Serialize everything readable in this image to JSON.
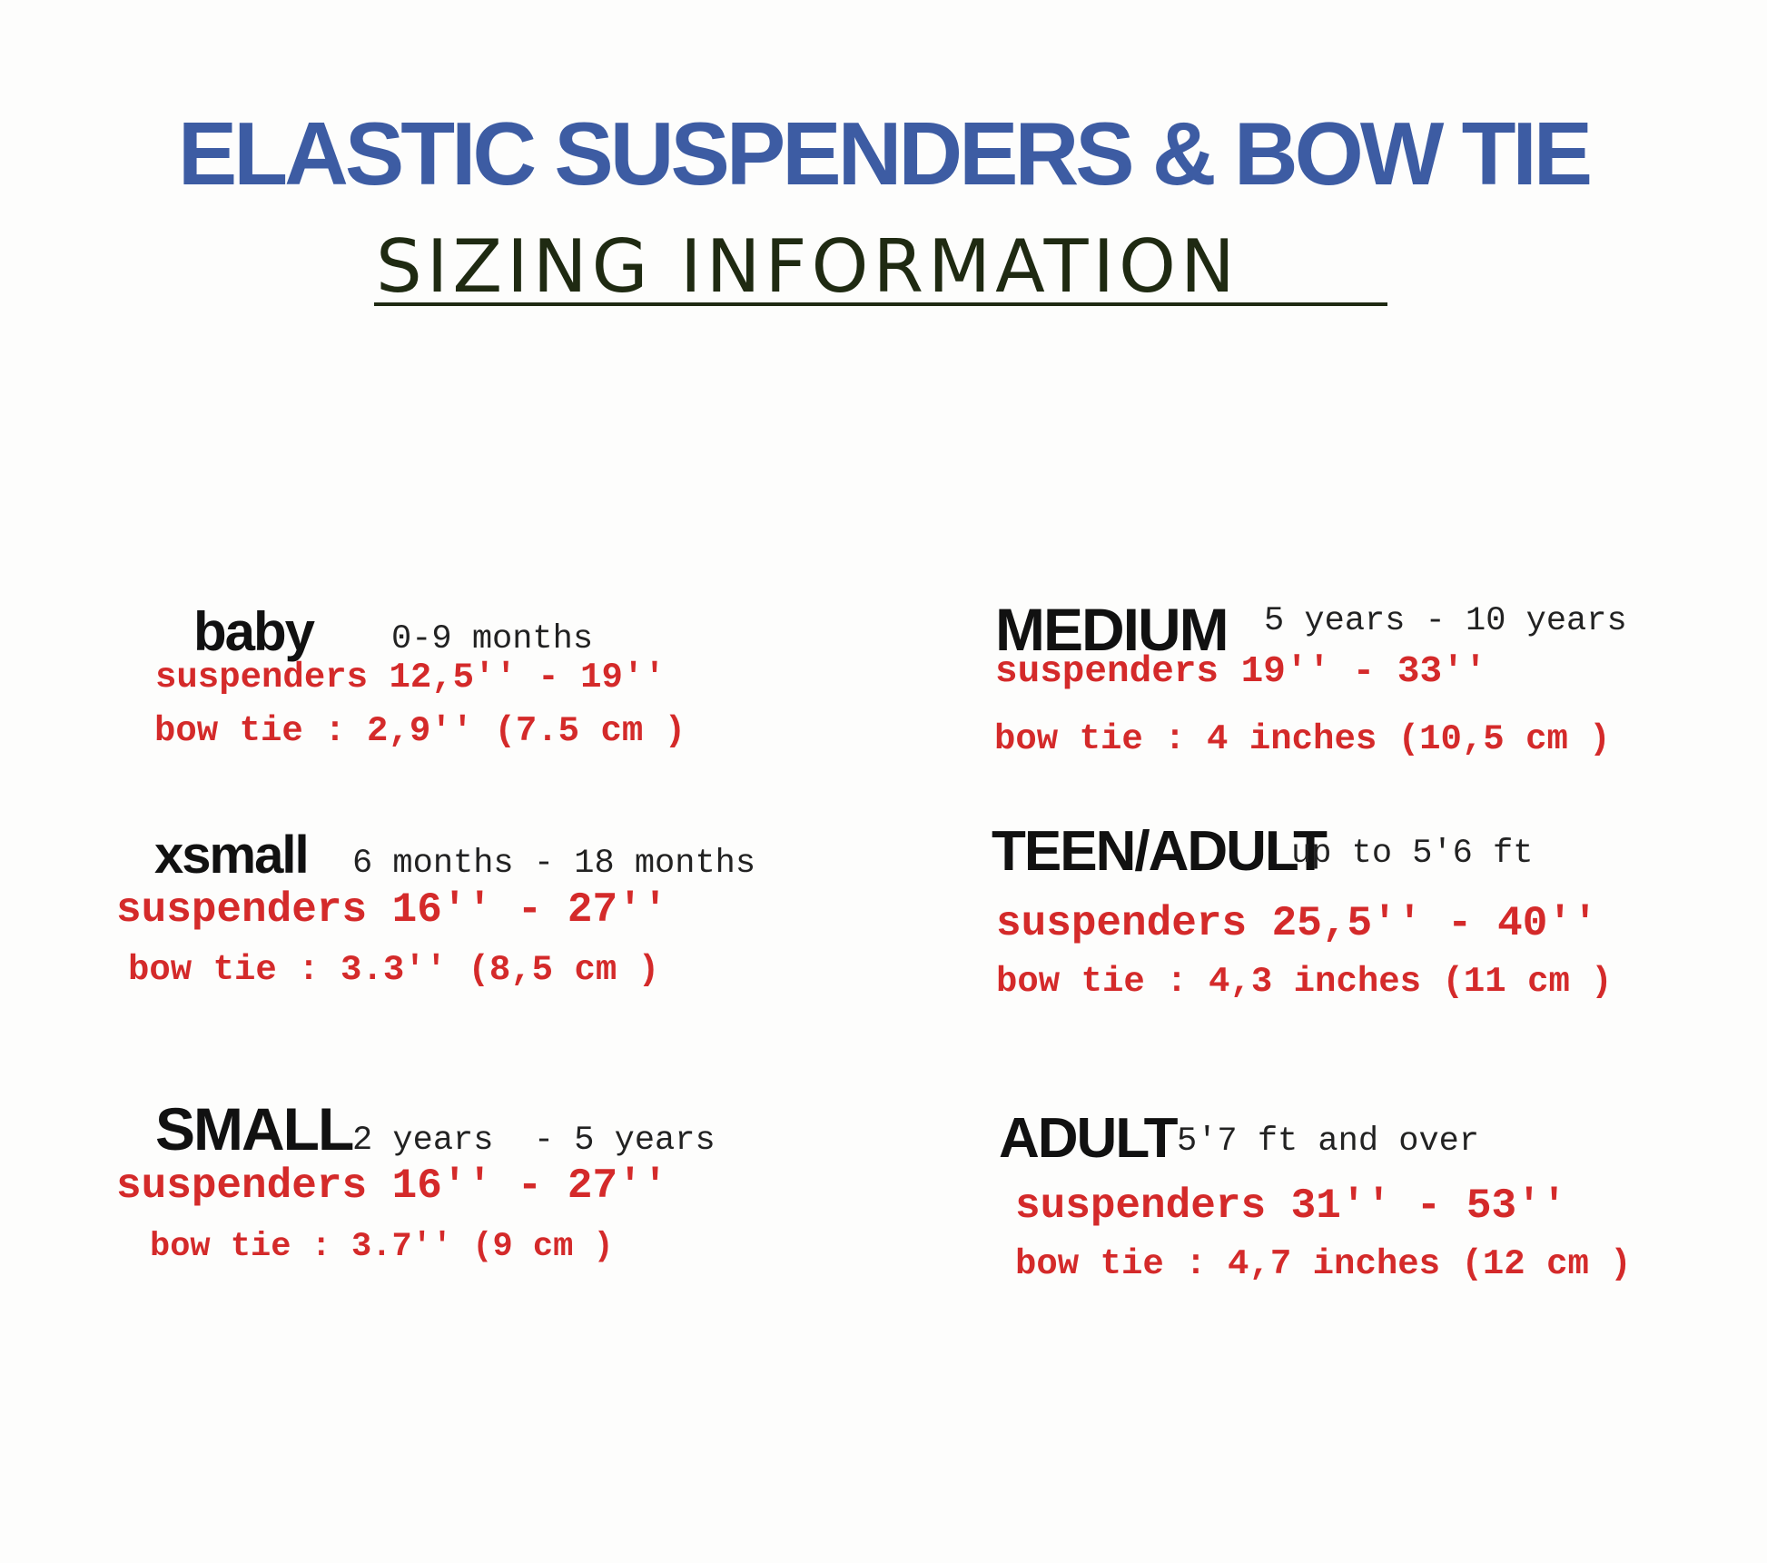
{
  "title": "ELASTIC SUSPENDERS & BOW TIE",
  "subtitle": "SIZING INFORMATION",
  "colors": {
    "title": "#3d5ca3",
    "subtitle": "#1f2a12",
    "measurements": "#d42a2a",
    "labels": "#111111"
  },
  "sizes": [
    {
      "label": "baby",
      "age": "0-9 months",
      "suspenders": "suspenders 12,5'' - 19''",
      "bow_tie": "bow tie : 2,9'' (7.5 cm )"
    },
    {
      "label": "xsmall",
      "age": "6 months - 18 months",
      "suspenders": "suspenders 16'' - 27''",
      "bow_tie": "bow tie : 3.3'' (8,5 cm )"
    },
    {
      "label": "SMALL",
      "age": "2 years  - 5 years",
      "suspenders": "suspenders 16'' - 27''",
      "bow_tie": "bow tie : 3.7'' (9 cm )"
    },
    {
      "label": "MEDIUM",
      "age": "5 years - 10 years",
      "suspenders": "suspenders 19'' - 33''",
      "bow_tie": "bow tie : 4 inches (10,5 cm )"
    },
    {
      "label": "TEEN/ADULT",
      "age": "up to 5'6 ft",
      "suspenders": "suspenders 25,5'' - 40''",
      "bow_tie": "bow tie : 4,3 inches (11 cm )"
    },
    {
      "label": "ADULT",
      "age": "5'7 ft and over",
      "suspenders": "suspenders 31'' - 53''",
      "bow_tie": "bow tie : 4,7 inches (12 cm )"
    }
  ]
}
